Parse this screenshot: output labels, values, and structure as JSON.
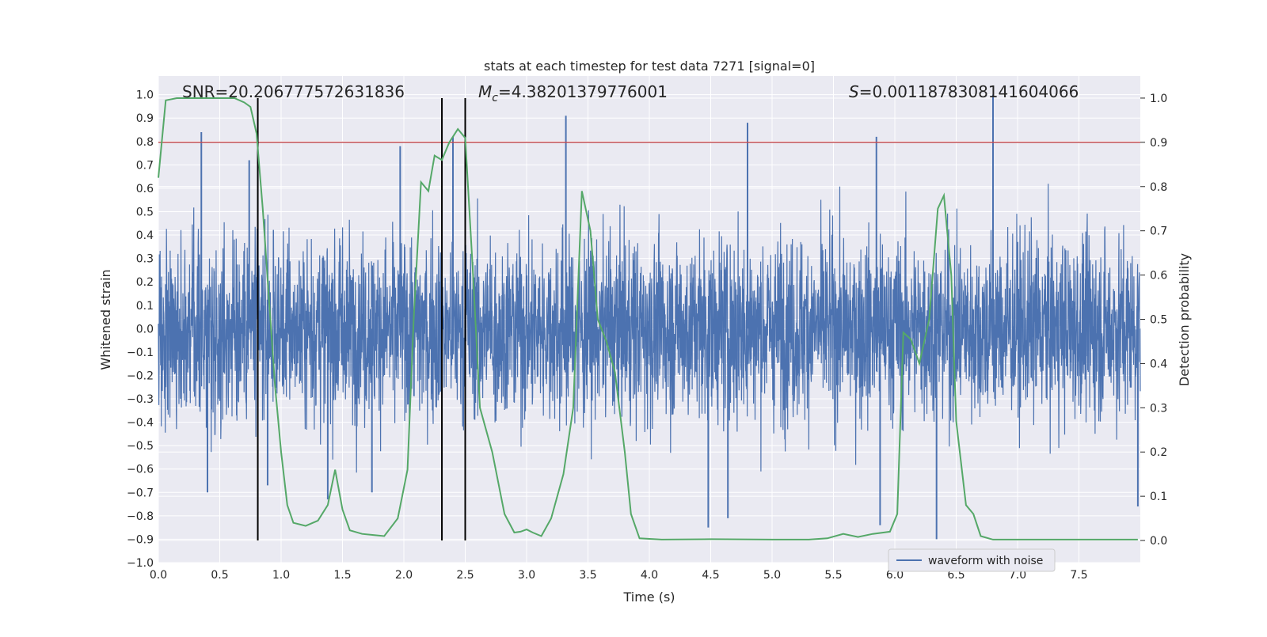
{
  "chart_data": {
    "type": "line",
    "title": "stats at each timestep for test data 7271 [signal=0]",
    "xlabel": "Time (s)",
    "ylabel": "Whitened strain",
    "y2label": "Detection probability",
    "xlim": [
      0,
      8
    ],
    "ylim": [
      -1.0,
      1.08
    ],
    "y2lim": [
      -0.05,
      1.05
    ],
    "x_ticks": [
      "0.0",
      "0.5",
      "1.0",
      "1.5",
      "2.0",
      "2.5",
      "3.0",
      "3.5",
      "4.0",
      "4.5",
      "5.0",
      "5.5",
      "6.0",
      "6.5",
      "7.0",
      "7.5"
    ],
    "y_ticks": [
      "1.0",
      "0.9",
      "0.8",
      "0.7",
      "0.6",
      "0.5",
      "0.4",
      "0.3",
      "0.2",
      "0.1",
      "0.0",
      "−0.1",
      "−0.2",
      "−0.3",
      "−0.4",
      "−0.5",
      "−0.6",
      "−0.7",
      "−0.8",
      "−0.9",
      "−1.0"
    ],
    "y2_ticks": [
      "1.0",
      "0.9",
      "0.8",
      "0.7",
      "0.6",
      "0.5",
      "0.4",
      "0.3",
      "0.2",
      "0.1",
      "0.0"
    ],
    "grid": true,
    "legend_location": "lower-right",
    "annotations": {
      "snr": "SNR=20.206777572631836",
      "mc_symbol": "M",
      "mc_sub": "c",
      "mc_value": "=4.38201379776001",
      "s_symbol": "S",
      "s_value": "=0.0011878308141604066"
    },
    "series": [
      {
        "name": "waveform with noise",
        "axis": "left",
        "color": "#4c72b0",
        "style": "dense-noise",
        "typical_amplitude": 0.35,
        "envelope_max": 0.62,
        "spikes": [
          {
            "x": 0.35,
            "y": 0.84
          },
          {
            "x": 0.74,
            "y": 0.72
          },
          {
            "x": 1.97,
            "y": 0.78
          },
          {
            "x": 2.4,
            "y": 0.82
          },
          {
            "x": 3.32,
            "y": 0.91
          },
          {
            "x": 4.8,
            "y": 0.88
          },
          {
            "x": 5.85,
            "y": 0.82
          },
          {
            "x": 6.8,
            "y": 1.0
          },
          {
            "x": 0.4,
            "y": -0.7
          },
          {
            "x": 0.89,
            "y": -0.67
          },
          {
            "x": 1.38,
            "y": -0.73
          },
          {
            "x": 1.74,
            "y": -0.7
          },
          {
            "x": 4.48,
            "y": -0.85
          },
          {
            "x": 4.64,
            "y": -0.81
          },
          {
            "x": 5.88,
            "y": -0.84
          },
          {
            "x": 6.34,
            "y": -0.9
          },
          {
            "x": 7.98,
            "y": -0.76
          }
        ]
      },
      {
        "name": "detection probability",
        "axis": "right",
        "color": "#55a868",
        "points": [
          [
            0.0,
            0.82
          ],
          [
            0.06,
            0.995
          ],
          [
            0.15,
            1.0
          ],
          [
            0.3,
            1.0
          ],
          [
            0.5,
            1.0
          ],
          [
            0.62,
            1.0
          ],
          [
            0.7,
            0.99
          ],
          [
            0.75,
            0.98
          ],
          [
            0.8,
            0.92
          ],
          [
            0.85,
            0.75
          ],
          [
            0.9,
            0.55
          ],
          [
            0.95,
            0.35
          ],
          [
            1.0,
            0.2
          ],
          [
            1.05,
            0.08
          ],
          [
            1.1,
            0.04
          ],
          [
            1.2,
            0.033
          ],
          [
            1.3,
            0.045
          ],
          [
            1.38,
            0.08
          ],
          [
            1.44,
            0.16
          ],
          [
            1.5,
            0.07
          ],
          [
            1.56,
            0.023
          ],
          [
            1.66,
            0.015
          ],
          [
            1.76,
            0.012
          ],
          [
            1.84,
            0.01
          ],
          [
            1.95,
            0.05
          ],
          [
            2.03,
            0.16
          ],
          [
            2.08,
            0.5
          ],
          [
            2.14,
            0.81
          ],
          [
            2.2,
            0.79
          ],
          [
            2.25,
            0.87
          ],
          [
            2.31,
            0.86
          ],
          [
            2.37,
            0.9
          ],
          [
            2.44,
            0.93
          ],
          [
            2.5,
            0.91
          ],
          [
            2.56,
            0.62
          ],
          [
            2.62,
            0.3
          ],
          [
            2.72,
            0.2
          ],
          [
            2.82,
            0.06
          ],
          [
            2.9,
            0.018
          ],
          [
            2.95,
            0.02
          ],
          [
            3.0,
            0.025
          ],
          [
            3.05,
            0.018
          ],
          [
            3.12,
            0.01
          ],
          [
            3.2,
            0.05
          ],
          [
            3.3,
            0.15
          ],
          [
            3.38,
            0.3
          ],
          [
            3.45,
            0.79
          ],
          [
            3.52,
            0.7
          ],
          [
            3.58,
            0.5
          ],
          [
            3.65,
            0.45
          ],
          [
            3.72,
            0.38
          ],
          [
            3.8,
            0.2
          ],
          [
            3.85,
            0.06
          ],
          [
            3.92,
            0.005
          ],
          [
            4.1,
            0.002
          ],
          [
            4.5,
            0.003
          ],
          [
            5.0,
            0.002
          ],
          [
            5.3,
            0.002
          ],
          [
            5.45,
            0.005
          ],
          [
            5.58,
            0.015
          ],
          [
            5.7,
            0.008
          ],
          [
            5.82,
            0.015
          ],
          [
            5.96,
            0.02
          ],
          [
            6.02,
            0.06
          ],
          [
            6.07,
            0.47
          ],
          [
            6.13,
            0.455
          ],
          [
            6.2,
            0.4
          ],
          [
            6.28,
            0.5
          ],
          [
            6.35,
            0.75
          ],
          [
            6.4,
            0.78
          ],
          [
            6.46,
            0.6
          ],
          [
            6.5,
            0.27
          ],
          [
            6.58,
            0.08
          ],
          [
            6.64,
            0.06
          ],
          [
            6.7,
            0.01
          ],
          [
            6.8,
            0.002
          ],
          [
            7.2,
            0.002
          ],
          [
            7.6,
            0.002
          ],
          [
            7.98,
            0.002
          ]
        ]
      },
      {
        "name": "threshold",
        "axis": "right",
        "color": "#c44e52",
        "value": 0.9
      }
    ],
    "vertical_markers": [
      0.81,
      2.31,
      2.5
    ],
    "vertical_marker_color": "#000000"
  }
}
